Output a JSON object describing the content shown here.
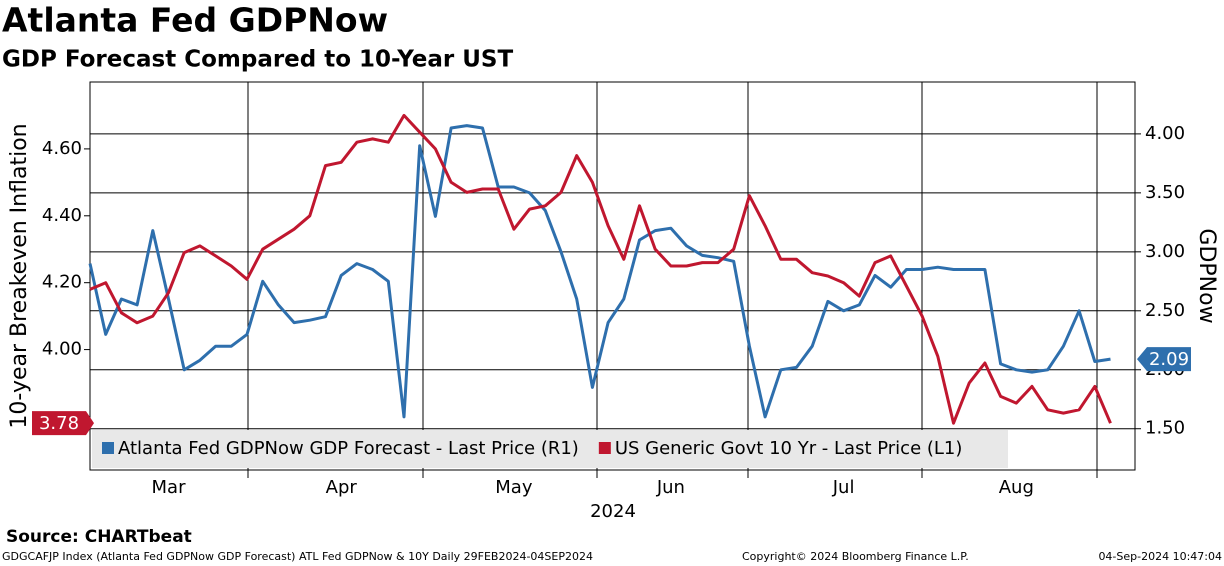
{
  "chart_data": {
    "type": "line",
    "title": "Atlanta Fed GDPNow",
    "subtitle": "GDP Forecast Compared to 10-Year UST",
    "y_label": "10-year Breakeven Inflation",
    "y2_label": "GDPNow",
    "x_label": "2024",
    "source": "Source: CHARTbeat",
    "footer_left": "GDGCAFJP Index (Atlanta Fed GDPNow GDP Forecast) ATL Fed GDPNow & 10Y  Daily 29FEB2024-04SEP2024",
    "footer_center": "Copyright© 2024 Bloomberg Finance L.P.",
    "footer_right": "04-Sep-2024 10:47:04",
    "categories": [
      null,
      null,
      null,
      null,
      null,
      "Mar",
      null,
      null,
      null,
      null,
      null,
      null,
      null,
      null,
      null,
      null,
      "Apr",
      null,
      null,
      null,
      null,
      null,
      null,
      null,
      null,
      null,
      null,
      "May",
      null,
      null,
      null,
      null,
      null,
      null,
      null,
      null,
      null,
      "Jun",
      null,
      null,
      null,
      null,
      null,
      null,
      null,
      null,
      null,
      null,
      "Jul",
      null,
      null,
      null,
      null,
      null,
      null,
      null,
      null,
      null,
      null,
      "Aug",
      null,
      null,
      null,
      null,
      null,
      null
    ],
    "series": [
      {
        "name": "Atlanta Fed GDPNow GDP Forecast - Last Price (R1)",
        "color": "#2e6fad",
        "axis": "y2",
        "values": [
          2.9,
          2.3,
          2.6,
          2.55,
          3.18,
          2.6,
          2.0,
          2.08,
          2.2,
          2.2,
          2.3,
          2.75,
          2.55,
          2.4,
          2.42,
          2.45,
          2.8,
          2.9,
          2.85,
          2.75,
          1.6,
          3.9,
          3.3,
          4.05,
          4.07,
          4.05,
          3.55,
          3.55,
          3.5,
          3.35,
          3.0,
          2.6,
          1.85,
          2.4,
          2.6,
          3.1,
          3.18,
          3.2,
          3.05,
          2.97,
          2.95,
          2.92,
          2.2,
          1.6,
          2.0,
          2.02,
          2.2,
          2.58,
          2.5,
          2.55,
          2.8,
          2.7,
          2.85,
          2.85,
          2.87,
          2.85,
          2.85,
          2.85,
          2.05,
          2.0,
          1.98,
          2.0,
          2.2,
          2.5,
          2.07,
          2.09
        ]
      },
      {
        "name": "US Generic Govt 10 Yr - Last Price (L1)",
        "color": "#c0172f",
        "values": [
          4.18,
          4.2,
          4.11,
          4.08,
          4.1,
          4.17,
          4.29,
          4.31,
          4.28,
          4.25,
          4.21,
          4.3,
          4.33,
          4.36,
          4.4,
          4.55,
          4.56,
          4.62,
          4.63,
          4.62,
          4.7,
          4.65,
          4.6,
          4.5,
          4.47,
          4.48,
          4.48,
          4.36,
          4.42,
          4.43,
          4.47,
          4.58,
          4.5,
          4.37,
          4.27,
          4.43,
          4.3,
          4.25,
          4.25,
          4.26,
          4.26,
          4.3,
          4.46,
          4.37,
          4.27,
          4.27,
          4.23,
          4.22,
          4.2,
          4.16,
          4.26,
          4.28,
          4.19,
          4.1,
          3.98,
          3.78,
          3.9,
          3.96,
          3.86,
          3.84,
          3.89,
          3.82,
          3.81,
          3.82,
          3.89,
          3.78
        ]
      }
    ],
    "ylim": [
      3.64,
      4.8
    ],
    "yticks": [
      {
        "value": 4.0,
        "label": "4.00"
      },
      {
        "value": 4.2,
        "label": "4.20"
      },
      {
        "value": 4.4,
        "label": "4.40"
      },
      {
        "value": 4.6,
        "label": "4.60"
      }
    ],
    "y2lim": [
      1.15,
      4.44
    ],
    "y2ticks": [
      {
        "value": 1.5,
        "label": "1.50"
      },
      {
        "value": 2.0,
        "label": "2.00"
      },
      {
        "value": 2.5,
        "label": "2.50"
      },
      {
        "value": 3.0,
        "label": "3.00"
      },
      {
        "value": 3.5,
        "label": "3.50"
      },
      {
        "value": 4.0,
        "label": "4.00"
      }
    ],
    "grid": true
  }
}
